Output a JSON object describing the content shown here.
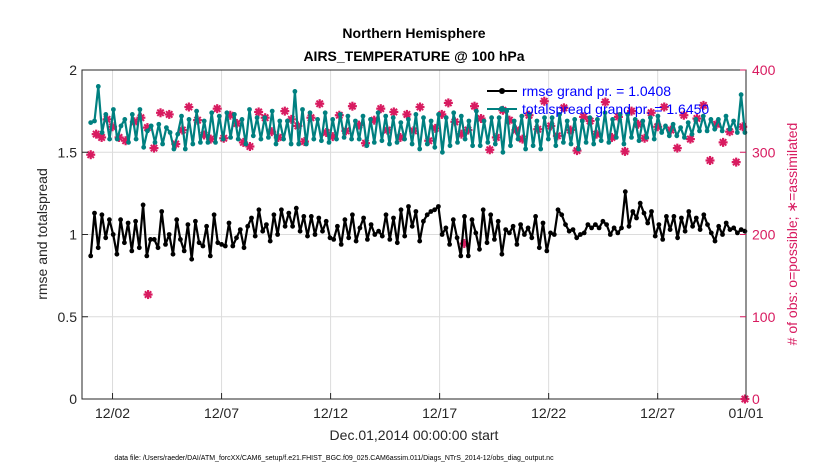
{
  "chart_data": {
    "type": "line",
    "title": "Northern Hemisphere",
    "subtitle": "AIRS_TEMPERATURE @ 100 hPa",
    "xlabel": "Dec.01,2014 00:00:00 start",
    "ylabel": "rmse and totalspread",
    "y2label": "# of obs: o=possible; ∗=assimilated",
    "footer": "data file: /Users/raeder/DAI/ATM_forcXX/CAM6_setup/f.e21.FHIST_BGC.f09_025.CAM6assim.011/Diags_NTrS_2014-12/obs_diag_output.nc",
    "xlim": [
      0.6,
      31.05
    ],
    "ylim": [
      0,
      2
    ],
    "y2lim": [
      0,
      400
    ],
    "x_ticks": [
      2,
      7,
      12,
      17,
      22,
      27,
      32
    ],
    "x_tick_labels": [
      "12/02",
      "12/07",
      "12/12",
      "12/17",
      "12/22",
      "12/27",
      "01/01"
    ],
    "y_ticks": [
      0,
      0.5,
      1,
      1.5,
      2
    ],
    "y_tick_labels": [
      "0",
      "0.5",
      "1",
      "1.5",
      "2"
    ],
    "y2_ticks": [
      0,
      100,
      200,
      300,
      400
    ],
    "y2_tick_labels": [
      "0",
      "100",
      "200",
      "300",
      "400"
    ],
    "grid": true,
    "legend_position": "top-right",
    "colors": {
      "rmse": "#000000",
      "spread": "#008080",
      "obs": "#d81b60",
      "legend_text": "#0000ff"
    },
    "series": [
      {
        "name": "rmse grand pr. = 1.0408",
        "axis": "left",
        "values": [
          0.87,
          1.13,
          0.92,
          1.12,
          0.98,
          1.09,
          1.0,
          0.88,
          1.09,
          0.95,
          1.07,
          0.9,
          1.08,
          0.92,
          1.18,
          0.87,
          0.97,
          0.97,
          0.92,
          1.14,
          0.94,
          1.0,
          0.88,
          1.09,
          0.97,
          0.9,
          1.06,
          0.85,
          1.08,
          0.95,
          0.93,
          1.05,
          0.87,
          1.12,
          0.95,
          0.94,
          0.93,
          1.07,
          0.93,
          0.98,
          1.03,
          0.92,
          1.05,
          1.1,
          0.99,
          1.15,
          1.02,
          1.06,
          0.96,
          1.12,
          1.0,
          1.15,
          1.05,
          1.13,
          1.05,
          1.16,
          1.02,
          1.11,
          0.99,
          1.11,
          1.0,
          1.1,
          1.02,
          1.08,
          0.98,
          0.97,
          1.05,
          0.94,
          1.09,
          0.98,
          1.12,
          0.96,
          1.04,
          1.1,
          0.97,
          1.06,
          1.0,
          1.02,
          0.99,
          1.12,
          0.97,
          1.1,
          0.95,
          1.15,
          0.99,
          1.17,
          1.05,
          1.14,
          0.96,
          1.08,
          1.12,
          1.14,
          1.15,
          1.17,
          1.0,
          1.04,
          0.94,
          1.09,
          0.98,
          0.87,
          1.11,
          0.87,
          1.09,
          1.01,
          0.91,
          1.15,
          0.95,
          1.12,
          0.97,
          1.08,
          0.88,
          1.03,
          1.01,
          1.05,
          0.94,
          1.06,
          1.0,
          1.04,
          0.98,
          1.11,
          0.92,
          1.07,
          0.9,
          1.01,
          1.0,
          1.15,
          1.12,
          1.06,
          1.02,
          1.03,
          0.98,
          1.0,
          1.01,
          1.06,
          1.04,
          1.06,
          1.04,
          1.08,
          1.06,
          1.0,
          1.04,
          1.01,
          1.04,
          1.26,
          1.05,
          1.14,
          1.1,
          1.19,
          1.13,
          1.07,
          1.14,
          0.99,
          1.06,
          0.97,
          1.11,
          1.03,
          1.11,
          0.98,
          1.1,
          1.02,
          1.14,
          1.05,
          1.1,
          1.03,
          1.12,
          1.06,
          1.01,
          0.96,
          1.05,
          1.0,
          1.07,
          1.03,
          1.04,
          1.01,
          1.03,
          1.02
        ]
      },
      {
        "name": "totalspread grand pr. = 1.6450",
        "axis": "left",
        "values": [
          1.68,
          1.69,
          1.9,
          1.62,
          1.73,
          1.58,
          1.76,
          1.58,
          1.66,
          1.7,
          1.56,
          1.73,
          1.58,
          1.76,
          1.53,
          1.63,
          1.66,
          1.56,
          1.67,
          1.55,
          1.65,
          1.62,
          1.52,
          1.61,
          1.72,
          1.52,
          1.7,
          1.55,
          1.75,
          1.56,
          1.69,
          1.56,
          1.74,
          1.56,
          1.72,
          1.58,
          1.74,
          1.59,
          1.73,
          1.58,
          1.7,
          1.55,
          1.76,
          1.6,
          1.71,
          1.58,
          1.71,
          1.59,
          1.75,
          1.55,
          1.69,
          1.58,
          1.69,
          1.55,
          1.87,
          1.55,
          1.76,
          1.55,
          1.74,
          1.58,
          1.7,
          1.57,
          1.74,
          1.56,
          1.7,
          1.58,
          1.73,
          1.59,
          1.72,
          1.58,
          1.69,
          1.58,
          1.72,
          1.54,
          1.7,
          1.56,
          1.74,
          1.57,
          1.72,
          1.55,
          1.71,
          1.56,
          1.68,
          1.58,
          1.7,
          1.55,
          1.73,
          1.52,
          1.71,
          1.55,
          1.69,
          1.53,
          1.73,
          1.5,
          1.71,
          1.54,
          1.74,
          1.56,
          1.72,
          1.58,
          1.69,
          1.54,
          1.75,
          1.54,
          1.69,
          1.56,
          1.71,
          1.55,
          1.71,
          1.5,
          1.75,
          1.54,
          1.69,
          1.58,
          1.72,
          1.52,
          1.73,
          1.54,
          1.69,
          1.52,
          1.71,
          1.58,
          1.71,
          1.54,
          1.73,
          1.56,
          1.69,
          1.55,
          1.7,
          1.52,
          1.69,
          1.56,
          1.71,
          1.55,
          1.7,
          1.57,
          1.74,
          1.56,
          1.7,
          1.59,
          1.73,
          1.55,
          1.73,
          1.59,
          1.7,
          1.57,
          1.69,
          1.59,
          1.71,
          1.58,
          1.72,
          1.62,
          1.66,
          1.6,
          1.67,
          1.6,
          1.65,
          1.59,
          1.68,
          1.61,
          1.7,
          1.63,
          1.72,
          1.63,
          1.7,
          1.64,
          1.7,
          1.63,
          1.72,
          1.64,
          1.69,
          1.62,
          1.85,
          1.62
        ]
      },
      {
        "name": "# of obs assimilated",
        "axis": "right",
        "x": [
          1,
          1.25,
          1.5,
          1.75,
          2,
          2.3,
          2.6,
          3,
          3.3,
          3.6,
          3.9,
          4.2,
          4.6,
          4.9,
          5.2,
          5.5,
          5.9,
          6.2,
          6.5,
          6.8,
          7.1,
          7.4,
          7.7,
          8,
          8.3,
          8.7,
          9,
          9.3,
          9.6,
          9.9,
          10.2,
          10.5,
          10.8,
          11.1,
          11.5,
          11.8,
          12.1,
          12.4,
          12.7,
          13,
          13.3,
          13.6,
          14,
          14.3,
          14.6,
          14.9,
          15.2,
          15.5,
          15.8,
          16.1,
          16.5,
          16.8,
          17.1,
          17.4,
          17.7,
          18,
          18.3,
          18.6,
          18.9,
          19.3,
          19.6,
          19.9,
          20.2,
          20.5,
          20.8,
          21.1,
          21.5,
          21.8,
          22.1,
          22.4,
          22.7,
          23,
          23.3,
          23.6,
          23.9,
          24.2,
          24.6,
          24.9,
          25.2,
          25.5,
          25.8,
          26.1,
          26.4,
          26.7,
          27,
          27.3,
          27.6,
          27.9,
          28.2,
          28.5,
          28.8,
          29.1,
          29.4,
          29.7,
          30,
          30.3,
          30.6,
          30.9,
          31,
          3.63,
          18.13
        ],
        "values": [
          297,
          322,
          318,
          340,
          331,
          318,
          314,
          337,
          342,
          330,
          305,
          348,
          346,
          310,
          327,
          355,
          339,
          321,
          316,
          353,
          317,
          345,
          335,
          312,
          307,
          349,
          342,
          325,
          318,
          350,
          340,
          332,
          313,
          342,
          359,
          324,
          319,
          345,
          326,
          356,
          333,
          311,
          339,
          353,
          327,
          349,
          318,
          346,
          326,
          355,
          314,
          329,
          346,
          360,
          337,
          322,
          327,
          356,
          341,
          303,
          318,
          351,
          339,
          327,
          316,
          345,
          328,
          362,
          332,
          320,
          354,
          327,
          302,
          343,
          338,
          322,
          361,
          318,
          343,
          301,
          350,
          334,
          317,
          348,
          331,
          355,
          327,
          305,
          345,
          316,
          341,
          357,
          290,
          334,
          312,
          325,
          288,
          331,
          0,
          127,
          189
        ]
      }
    ]
  }
}
